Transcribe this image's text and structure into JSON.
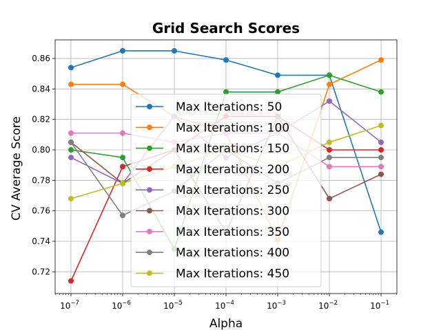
{
  "chart_data": {
    "type": "line",
    "title": "Grid Search Scores",
    "xlabel": "Alpha",
    "ylabel": "CV Average Score",
    "x_scale": "log",
    "x": [
      1e-07,
      1e-06,
      1e-05,
      0.0001,
      0.001,
      0.01,
      0.1
    ],
    "x_tick_labels": [
      {
        "base": "10",
        "exp": "−7"
      },
      {
        "base": "10",
        "exp": "−6"
      },
      {
        "base": "10",
        "exp": "−5"
      },
      {
        "base": "10",
        "exp": "−4"
      },
      {
        "base": "10",
        "exp": "−3"
      },
      {
        "base": "10",
        "exp": "−2"
      },
      {
        "base": "10",
        "exp": "−1"
      }
    ],
    "y_ticks": [
      0.72,
      0.74,
      0.76,
      0.78,
      0.8,
      0.82,
      0.84,
      0.86
    ],
    "y_tick_labels": [
      "0.72",
      "0.74",
      "0.76",
      "0.78",
      "0.80",
      "0.82",
      "0.84",
      "0.86"
    ],
    "ylim": [
      0.7057,
      0.8722
    ],
    "grid": true,
    "legend_placement": "center",
    "series": [
      {
        "name": "Max Iterations: 50",
        "color": "#1f77b4",
        "values": [
          0.854,
          0.865,
          0.865,
          0.859,
          0.849,
          0.849,
          0.746
        ]
      },
      {
        "name": "Max Iterations: 100",
        "color": "#ff7f0e",
        "values": [
          0.843,
          0.843,
          0.822,
          0.811,
          0.741,
          0.843,
          0.859
        ]
      },
      {
        "name": "Max Iterations: 150",
        "color": "#2ca02c",
        "values": [
          0.8,
          0.795,
          0.735,
          0.838,
          0.838,
          0.849,
          0.838
        ]
      },
      {
        "name": "Max Iterations: 200",
        "color": "#d62728",
        "values": [
          0.714,
          0.789,
          0.8,
          0.822,
          0.822,
          0.8,
          0.8
        ]
      },
      {
        "name": "Max Iterations: 250",
        "color": "#9467bd",
        "values": [
          0.795,
          0.778,
          0.822,
          0.795,
          0.811,
          0.832,
          0.805
        ]
      },
      {
        "name": "Max Iterations: 300",
        "color": "#8c564b",
        "values": [
          0.805,
          0.778,
          0.8,
          0.746,
          0.822,
          0.768,
          0.784
        ]
      },
      {
        "name": "Max Iterations: 350",
        "color": "#e377c2",
        "values": [
          0.811,
          0.811,
          0.805,
          0.811,
          0.811,
          0.789,
          0.789
        ]
      },
      {
        "name": "Max Iterations: 400",
        "color": "#7f7f7f",
        "values": [
          0.805,
          0.757,
          0.773,
          0.8,
          0.778,
          0.795,
          0.795
        ]
      },
      {
        "name": "Max Iterations: 450",
        "color": "#bcbd22",
        "values": [
          0.768,
          0.778,
          0.789,
          0.8,
          0.789,
          0.805,
          0.816
        ]
      }
    ]
  }
}
